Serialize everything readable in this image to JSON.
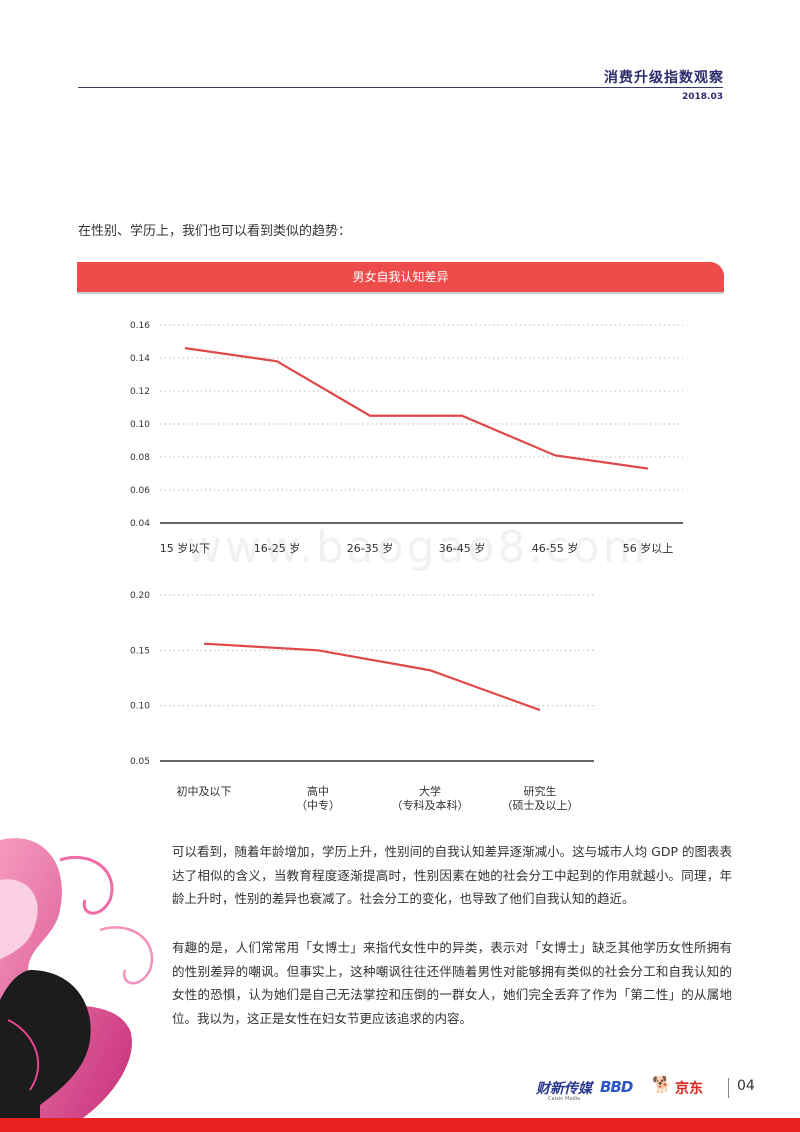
{
  "header": {
    "title": "消费升级指数观察",
    "date": "2018.03"
  },
  "intro_text": "在性别、学历上，我们也可以看到类似的趋势：",
  "banner_title": "男女自我认知差异",
  "watermark": "www.baogao8.com",
  "chart_data": [
    {
      "type": "line",
      "title": "",
      "categories": [
        "15 岁以下",
        "16-25 岁",
        "26-35 岁",
        "36-45 岁",
        "46-55 岁",
        "56 岁以上"
      ],
      "values": [
        0.146,
        0.138,
        0.105,
        0.105,
        0.081,
        0.073
      ],
      "ylim": [
        0.04,
        0.16
      ],
      "yticks": [
        "0.04",
        "0.06",
        "0.08",
        "0.10",
        "0.12",
        "0.14",
        "0.16"
      ],
      "grid": true,
      "color": "#e04848"
    },
    {
      "type": "line",
      "title": "",
      "categories": [
        [
          "初中及以下"
        ],
        [
          "高中",
          "（中专）"
        ],
        [
          "大学",
          "（专科及本科）"
        ],
        [
          "研究生",
          "（硕士及以上）"
        ]
      ],
      "values": [
        0.156,
        0.15,
        0.132,
        0.096
      ],
      "ylim": [
        0.05,
        0.2
      ],
      "yticks": [
        "0.05",
        "0.10",
        "0.15",
        "0.20"
      ],
      "grid": true,
      "color": "#e04848"
    }
  ],
  "paragraphs": [
    "可以看到，随着年龄增加，学历上升，性别间的自我认知差异逐渐减小。这与城市人均 GDP 的图表表达了相似的含义，当教育程度逐渐提高时，性别因素在她的社会分工中起到的作用就越小。同理，年龄上升时，性别的差异也衰减了。社会分工的变化，也导致了他们自我认知的趋近。",
    "有趣的是，人们常常用「女博士」来指代女性中的异类，表示对「女博士」缺乏其他学历女性所拥有的性别差异的嘲讽。但事实上，这种嘲讽往往还伴随着男性对能够拥有类似的社会分工和自我认知的女性的恐惧，认为她们是自己无法掌控和压倒的一群女人，她们完全丢弃了作为「第二性」的从属地位。我以为，这正是女性在妇女节更应该追求的内容。"
  ],
  "footer": {
    "logo1": "财新传媒",
    "logo1_sub": "Caixin Media",
    "logo2": "BBD",
    "logo3": "京东",
    "page_number": "04"
  },
  "colors": {
    "accent": "#ee4b4b",
    "navy": "#2d2d6e",
    "footer_red": "#e8231f"
  }
}
